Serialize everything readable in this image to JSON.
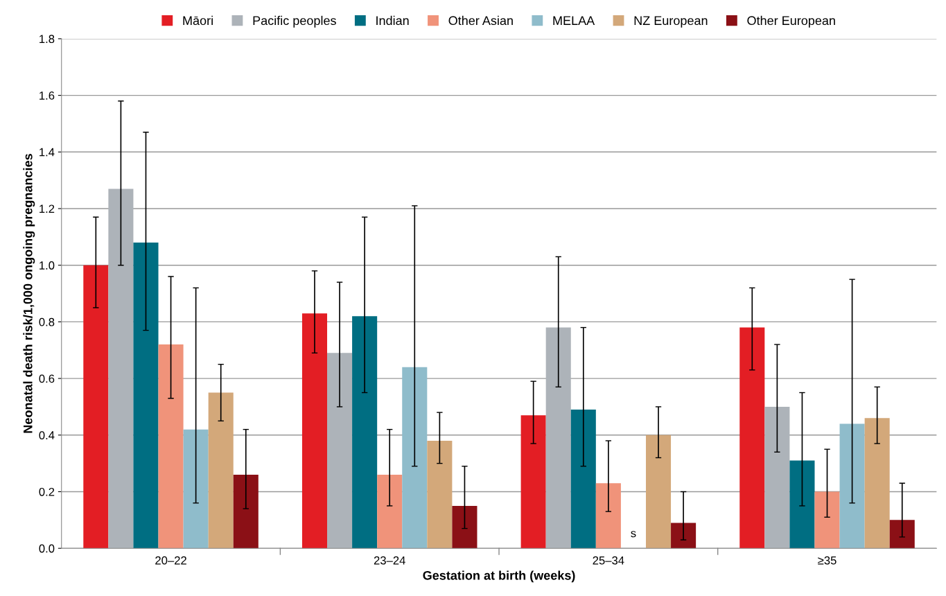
{
  "chart_data": {
    "type": "bar",
    "xlabel": "Gestation at birth (weeks)",
    "ylabel": "Neonatal death risk/1,000 ongoing pregnancies",
    "categories": [
      "20–22",
      "23–24",
      "25–34",
      "≥35"
    ],
    "series": [
      {
        "name": "Māori",
        "color": "#e31e24",
        "values": [
          1.0,
          0.83,
          0.47,
          0.78
        ],
        "errors": [
          [
            0.85,
            1.17
          ],
          [
            0.69,
            0.98
          ],
          [
            0.37,
            0.59
          ],
          [
            0.63,
            0.92
          ]
        ]
      },
      {
        "name": "Pacific peoples",
        "color": "#adb3b9",
        "values": [
          1.27,
          0.69,
          0.78,
          0.5
        ],
        "errors": [
          [
            1.0,
            1.58
          ],
          [
            0.5,
            0.94
          ],
          [
            0.57,
            1.03
          ],
          [
            0.34,
            0.72
          ]
        ]
      },
      {
        "name": "Indian",
        "color": "#006e82",
        "values": [
          1.08,
          0.82,
          0.49,
          0.31
        ],
        "errors": [
          [
            0.77,
            1.47
          ],
          [
            0.55,
            1.17
          ],
          [
            0.29,
            0.78
          ],
          [
            0.15,
            0.55
          ]
        ]
      },
      {
        "name": "Other Asian",
        "color": "#f0937a",
        "values": [
          0.72,
          0.26,
          0.23,
          0.2
        ],
        "errors": [
          [
            0.53,
            0.96
          ],
          [
            0.15,
            0.42
          ],
          [
            0.13,
            0.38
          ],
          [
            0.11,
            0.35
          ]
        ]
      },
      {
        "name": "MELAA",
        "color": "#8fbccb",
        "values": [
          0.42,
          0.64,
          null,
          0.44
        ],
        "errors": [
          [
            0.16,
            0.92
          ],
          [
            0.29,
            1.21
          ],
          null,
          [
            0.16,
            0.95
          ]
        ]
      },
      {
        "name": "NZ European",
        "color": "#d3a87a",
        "values": [
          0.55,
          0.38,
          0.4,
          0.46
        ],
        "errors": [
          [
            0.45,
            0.65
          ],
          [
            0.3,
            0.48
          ],
          [
            0.32,
            0.5
          ],
          [
            0.37,
            0.57
          ]
        ]
      },
      {
        "name": "Other European",
        "color": "#8b1016",
        "values": [
          0.26,
          0.15,
          0.09,
          0.1
        ],
        "errors": [
          [
            0.14,
            0.42
          ],
          [
            0.07,
            0.29
          ],
          [
            0.03,
            0.2
          ],
          [
            0.04,
            0.23
          ]
        ]
      }
    ],
    "annotations": [
      "s"
    ],
    "ylim": [
      0,
      1.8
    ],
    "yticks": [
      {
        "value": 0,
        "label": "0.0"
      },
      {
        "value": 0.2,
        "label": "0.2"
      },
      {
        "value": 0.4,
        "label": "0.4"
      },
      {
        "value": 0.6,
        "label": "0.6"
      },
      {
        "value": 0.8,
        "label": "0.8"
      },
      {
        "value": 1.0,
        "label": "1.0"
      },
      {
        "value": 1.2,
        "label": "1.2"
      },
      {
        "value": 1.4,
        "label": "1.4"
      },
      {
        "value": 1.6,
        "label": "1.6"
      },
      {
        "value": 1.8,
        "label": "1.8"
      }
    ],
    "grid": "y",
    "legend": "top"
  }
}
